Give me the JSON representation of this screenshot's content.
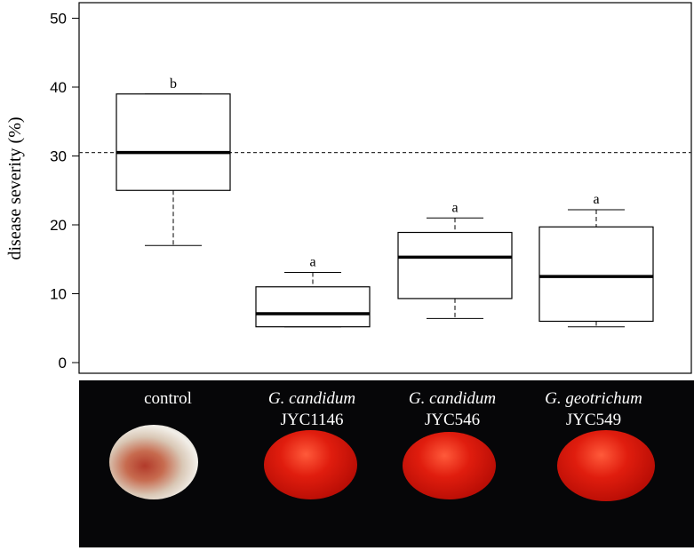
{
  "chart_data": {
    "type": "box",
    "ylabel": "disease severity (%)",
    "ylim": [
      0,
      50
    ],
    "yticks": [
      0,
      10,
      20,
      30,
      40,
      50
    ],
    "reference_line": 30.5,
    "categories": [
      "control",
      "G. candidum JYC1146",
      "G. candidum JYC546",
      "G. geotrichum JYC549"
    ],
    "boxes": [
      {
        "category": "control",
        "whisker_low": 17,
        "q1": 25,
        "median": 30.5,
        "q3": 39,
        "whisker_high": 39,
        "significance": "b"
      },
      {
        "category": "G. candidum JYC1146",
        "whisker_low": 5.2,
        "q1": 5.2,
        "median": 7.1,
        "q3": 11,
        "whisker_high": 13.1,
        "significance": "a"
      },
      {
        "category": "G. candidum JYC546",
        "whisker_low": 6.4,
        "q1": 9.3,
        "median": 15.3,
        "q3": 18.9,
        "whisker_high": 21,
        "significance": "a"
      },
      {
        "category": "G. geotrichum JYC549",
        "whisker_low": 5.2,
        "q1": 6,
        "median": 12.5,
        "q3": 19.7,
        "whisker_high": 22.2,
        "significance": "a"
      }
    ],
    "grid": false
  },
  "photo_labels": [
    {
      "species": "",
      "strain": "control"
    },
    {
      "species": "G. candidum",
      "strain": "JYC1146"
    },
    {
      "species": "G. candidum",
      "strain": "JYC546"
    },
    {
      "species": "G. geotrichum",
      "strain": "JYC549"
    }
  ],
  "colors": {
    "box_stroke": "#000000",
    "reference_line": "#333333",
    "photo_background": "#060608",
    "rotten_fruit": "#c9b8a8",
    "healthy_fruit": "#d51a0c"
  }
}
